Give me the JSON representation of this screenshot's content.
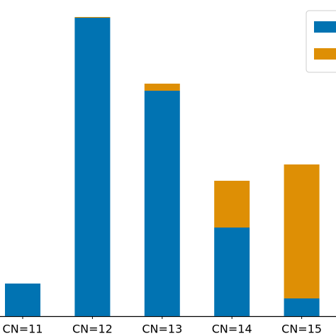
{
  "chart_data": {
    "type": "stacked_bar",
    "categories": [
      "CN=11",
      "CN=12",
      "CN=13",
      "CN=14",
      "CN=15"
    ],
    "series": [
      {
        "color": "#0173b2",
        "values": [
          46,
          421,
          318,
          125,
          25
        ]
      },
      {
        "color": "#de8f05",
        "values": [
          0,
          1,
          10,
          66,
          189
        ]
      }
    ],
    "ylim": [
      0,
      446
    ]
  }
}
